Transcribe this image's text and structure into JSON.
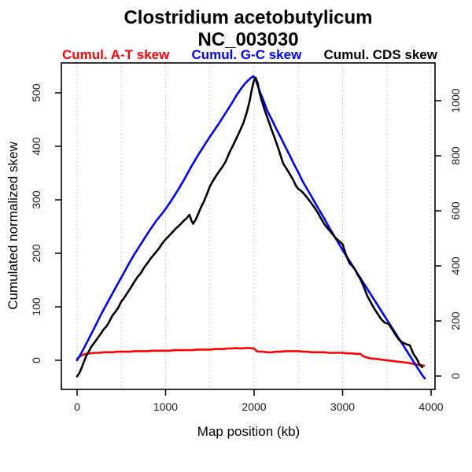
{
  "title": "Clostridium acetobutylicum",
  "subtitle": "NC_003030",
  "legend": [
    {
      "label": "Cumul. A-T skew",
      "color": "#ff0000"
    },
    {
      "label": "Cumul. G-C skew",
      "color": "#0000ff"
    },
    {
      "label": "Cumul. CDS skew",
      "color": "#000000"
    }
  ],
  "axes": {
    "left": {
      "title": "Cumulated normalized skew",
      "ticks": [
        0,
        100,
        200,
        300,
        400,
        500
      ]
    },
    "right": {
      "ticks": [
        0,
        200,
        400,
        600,
        800,
        1000
      ]
    },
    "bottom": {
      "title": "Map position (kb)",
      "ticks": [
        0,
        1000,
        2000,
        3000,
        4000
      ],
      "gridline_step_kb": 500
    }
  },
  "chart_data": {
    "type": "line",
    "title": "Clostridium acetobutylicum NC_003030",
    "xlabel": "Map position (kb)",
    "ylabel": "Cumulated normalized skew",
    "x_range_kb": [
      0,
      4000
    ],
    "left_y_ticks": [
      0,
      100,
      200,
      300,
      400,
      500
    ],
    "right_y_ticks": [
      0,
      200,
      400,
      600,
      800,
      1000
    ],
    "grid": "vertical-dashed-every-500kb",
    "legend_position": "top",
    "series": [
      {
        "name": "Cumul. A-T skew",
        "color": "#ff0000",
        "points": [
          [
            0,
            3
          ],
          [
            30,
            7
          ],
          [
            60,
            10
          ],
          [
            100,
            12
          ],
          [
            150,
            13
          ],
          [
            200,
            14
          ],
          [
            250,
            14
          ],
          [
            300,
            15
          ],
          [
            350,
            15
          ],
          [
            400,
            15
          ],
          [
            450,
            16
          ],
          [
            500,
            16
          ],
          [
            550,
            16
          ],
          [
            600,
            16
          ],
          [
            650,
            17
          ],
          [
            700,
            17
          ],
          [
            750,
            17
          ],
          [
            800,
            17
          ],
          [
            850,
            18
          ],
          [
            900,
            18
          ],
          [
            950,
            18
          ],
          [
            1000,
            18
          ],
          [
            1050,
            18
          ],
          [
            1100,
            19
          ],
          [
            1150,
            19
          ],
          [
            1200,
            19
          ],
          [
            1250,
            19
          ],
          [
            1300,
            19
          ],
          [
            1350,
            20
          ],
          [
            1400,
            20
          ],
          [
            1450,
            20
          ],
          [
            1500,
            20
          ],
          [
            1550,
            21
          ],
          [
            1600,
            21
          ],
          [
            1650,
            21
          ],
          [
            1700,
            22
          ],
          [
            1750,
            22
          ],
          [
            1800,
            23
          ],
          [
            1850,
            22
          ],
          [
            1900,
            23
          ],
          [
            1950,
            23
          ],
          [
            2000,
            22
          ],
          [
            2030,
            17
          ],
          [
            2060,
            16
          ],
          [
            2100,
            16
          ],
          [
            2150,
            15
          ],
          [
            2200,
            15
          ],
          [
            2250,
            16
          ],
          [
            2300,
            16
          ],
          [
            2350,
            17
          ],
          [
            2400,
            17
          ],
          [
            2450,
            17
          ],
          [
            2500,
            17
          ],
          [
            2550,
            16
          ],
          [
            2600,
            16
          ],
          [
            2650,
            15
          ],
          [
            2700,
            15
          ],
          [
            2750,
            15
          ],
          [
            2800,
            15
          ],
          [
            2850,
            14
          ],
          [
            2900,
            14
          ],
          [
            2950,
            14
          ],
          [
            3000,
            14
          ],
          [
            3050,
            13
          ],
          [
            3100,
            13
          ],
          [
            3150,
            12
          ],
          [
            3200,
            12
          ],
          [
            3230,
            8
          ],
          [
            3260,
            6
          ],
          [
            3300,
            4
          ],
          [
            3350,
            3
          ],
          [
            3400,
            2
          ],
          [
            3450,
            1
          ],
          [
            3500,
            0
          ],
          [
            3550,
            -1
          ],
          [
            3600,
            -2
          ],
          [
            3650,
            -3
          ],
          [
            3700,
            -4
          ],
          [
            3750,
            -5
          ],
          [
            3800,
            -7
          ],
          [
            3850,
            -8
          ],
          [
            3880,
            -9
          ],
          [
            3920,
            -10
          ]
        ]
      },
      {
        "name": "Cumul. G-C skew",
        "color": "#0000ff",
        "points": [
          [
            0,
            0
          ],
          [
            50,
            14
          ],
          [
            100,
            30
          ],
          [
            150,
            46
          ],
          [
            200,
            62
          ],
          [
            250,
            79
          ],
          [
            300,
            95
          ],
          [
            350,
            110
          ],
          [
            400,
            125
          ],
          [
            450,
            140
          ],
          [
            500,
            155
          ],
          [
            550,
            170
          ],
          [
            600,
            185
          ],
          [
            650,
            199
          ],
          [
            700,
            212
          ],
          [
            750,
            225
          ],
          [
            800,
            238
          ],
          [
            850,
            250
          ],
          [
            900,
            262
          ],
          [
            950,
            272
          ],
          [
            1000,
            283
          ],
          [
            1050,
            295
          ],
          [
            1100,
            308
          ],
          [
            1150,
            321
          ],
          [
            1200,
            335
          ],
          [
            1250,
            350
          ],
          [
            1300,
            365
          ],
          [
            1350,
            379
          ],
          [
            1400,
            392
          ],
          [
            1450,
            405
          ],
          [
            1500,
            418
          ],
          [
            1550,
            430
          ],
          [
            1600,
            442
          ],
          [
            1650,
            455
          ],
          [
            1700,
            468
          ],
          [
            1750,
            481
          ],
          [
            1800,
            495
          ],
          [
            1850,
            507
          ],
          [
            1900,
            518
          ],
          [
            1950,
            526
          ],
          [
            1990,
            531
          ],
          [
            2010,
            528
          ],
          [
            2040,
            514
          ],
          [
            2070,
            500
          ],
          [
            2100,
            488
          ],
          [
            2150,
            466
          ],
          [
            2200,
            450
          ],
          [
            2250,
            433
          ],
          [
            2300,
            417
          ],
          [
            2350,
            400
          ],
          [
            2400,
            384
          ],
          [
            2450,
            367
          ],
          [
            2500,
            351
          ],
          [
            2550,
            334
          ],
          [
            2600,
            320
          ],
          [
            2650,
            306
          ],
          [
            2700,
            291
          ],
          [
            2750,
            277
          ],
          [
            2800,
            263
          ],
          [
            2850,
            248
          ],
          [
            2900,
            234
          ],
          [
            2950,
            220
          ],
          [
            3000,
            206
          ],
          [
            3050,
            193
          ],
          [
            3100,
            180
          ],
          [
            3150,
            167
          ],
          [
            3200,
            154
          ],
          [
            3250,
            141
          ],
          [
            3300,
            128
          ],
          [
            3350,
            115
          ],
          [
            3400,
            102
          ],
          [
            3450,
            89
          ],
          [
            3500,
            76
          ],
          [
            3550,
            63
          ],
          [
            3600,
            50
          ],
          [
            3650,
            37
          ],
          [
            3700,
            24
          ],
          [
            3750,
            11
          ],
          [
            3800,
            -2
          ],
          [
            3850,
            -15
          ],
          [
            3900,
            -28
          ],
          [
            3930,
            -34
          ]
        ]
      },
      {
        "name": "Cumul. CDS skew",
        "color": "#000000",
        "points": [
          [
            0,
            -30
          ],
          [
            25,
            -24
          ],
          [
            50,
            -15
          ],
          [
            75,
            -4
          ],
          [
            100,
            7
          ],
          [
            120,
            13
          ],
          [
            140,
            19
          ],
          [
            160,
            25
          ],
          [
            180,
            30
          ],
          [
            200,
            34
          ],
          [
            230,
            41
          ],
          [
            260,
            48
          ],
          [
            300,
            58
          ],
          [
            330,
            63
          ],
          [
            360,
            71
          ],
          [
            400,
            84
          ],
          [
            430,
            90
          ],
          [
            460,
            97
          ],
          [
            500,
            110
          ],
          [
            530,
            116
          ],
          [
            560,
            124
          ],
          [
            600,
            134
          ],
          [
            640,
            145
          ],
          [
            680,
            155
          ],
          [
            720,
            163
          ],
          [
            760,
            174
          ],
          [
            800,
            183
          ],
          [
            840,
            192
          ],
          [
            880,
            200
          ],
          [
            920,
            208
          ],
          [
            960,
            218
          ],
          [
            1000,
            226
          ],
          [
            1040,
            233
          ],
          [
            1080,
            240
          ],
          [
            1120,
            247
          ],
          [
            1160,
            253
          ],
          [
            1200,
            260
          ],
          [
            1240,
            266
          ],
          [
            1270,
            272
          ],
          [
            1290,
            262
          ],
          [
            1310,
            255
          ],
          [
            1340,
            263
          ],
          [
            1370,
            274
          ],
          [
            1400,
            286
          ],
          [
            1430,
            296
          ],
          [
            1460,
            308
          ],
          [
            1500,
            325
          ],
          [
            1530,
            334
          ],
          [
            1560,
            342
          ],
          [
            1600,
            352
          ],
          [
            1640,
            361
          ],
          [
            1680,
            372
          ],
          [
            1720,
            388
          ],
          [
            1760,
            401
          ],
          [
            1800,
            415
          ],
          [
            1840,
            429
          ],
          [
            1880,
            444
          ],
          [
            1920,
            465
          ],
          [
            1950,
            485
          ],
          [
            1975,
            507
          ],
          [
            2000,
            524
          ],
          [
            2017,
            528
          ],
          [
            2040,
            519
          ],
          [
            2060,
            501
          ],
          [
            2080,
            489
          ],
          [
            2100,
            478
          ],
          [
            2130,
            463
          ],
          [
            2160,
            449
          ],
          [
            2200,
            430
          ],
          [
            2240,
            412
          ],
          [
            2280,
            393
          ],
          [
            2320,
            372
          ],
          [
            2335,
            366
          ],
          [
            2360,
            360
          ],
          [
            2400,
            349
          ],
          [
            2440,
            338
          ],
          [
            2470,
            327
          ],
          [
            2500,
            320
          ],
          [
            2530,
            317
          ],
          [
            2560,
            312
          ],
          [
            2600,
            304
          ],
          [
            2640,
            295
          ],
          [
            2680,
            286
          ],
          [
            2720,
            276
          ],
          [
            2760,
            264
          ],
          [
            2800,
            253
          ],
          [
            2840,
            245
          ],
          [
            2880,
            237
          ],
          [
            2920,
            229
          ],
          [
            2960,
            223
          ],
          [
            3000,
            217
          ],
          [
            3040,
            196
          ],
          [
            3080,
            181
          ],
          [
            3110,
            176
          ],
          [
            3140,
            170
          ],
          [
            3170,
            160
          ],
          [
            3200,
            152
          ],
          [
            3240,
            137
          ],
          [
            3280,
            120
          ],
          [
            3320,
            108
          ],
          [
            3360,
            96
          ],
          [
            3400,
            86
          ],
          [
            3440,
            76
          ],
          [
            3480,
            70
          ],
          [
            3520,
            68
          ],
          [
            3560,
            58
          ],
          [
            3600,
            47
          ],
          [
            3640,
            38
          ],
          [
            3680,
            33
          ],
          [
            3720,
            30
          ],
          [
            3760,
            28
          ],
          [
            3800,
            12
          ],
          [
            3840,
            2
          ],
          [
            3870,
            -8
          ],
          [
            3900,
            -13
          ]
        ]
      }
    ]
  }
}
